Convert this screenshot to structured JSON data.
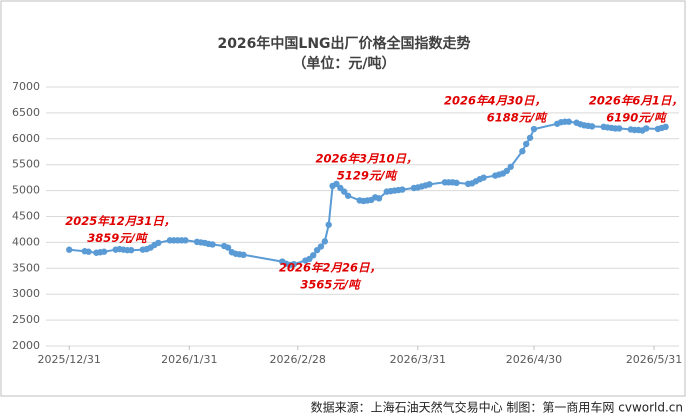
{
  "chart_data": {
    "type": "line",
    "title": "2026年中国LNG出厂价格全国指数走势",
    "subtitle": "（单位：元/吨）",
    "source": "数据来源：上海石油天然气交易中心 制图：第一商用车网 cvworld.cn",
    "x": [
      "2025/12/31",
      "2026/1/4",
      "2026/1/5",
      "2026/1/7",
      "2026/1/8",
      "2026/1/9",
      "2026/1/12",
      "2026/1/13",
      "2026/1/14",
      "2026/1/15",
      "2026/1/16",
      "2026/1/19",
      "2026/1/20",
      "2026/1/21",
      "2026/1/22",
      "2026/1/23",
      "2026/1/26",
      "2026/1/27",
      "2026/1/28",
      "2026/1/29",
      "2026/1/30",
      "2026/2/2",
      "2026/2/3",
      "2026/2/4",
      "2026/2/5",
      "2026/2/6",
      "2026/2/9",
      "2026/2/10",
      "2026/2/11",
      "2026/2/12",
      "2026/2/13",
      "2026/2/14",
      "2026/2/24",
      "2026/2/25",
      "2026/2/26",
      "2026/2/27",
      "2026/3/2",
      "2026/3/3",
      "2026/3/4",
      "2026/3/5",
      "2026/3/6",
      "2026/3/7",
      "2026/3/8",
      "2026/3/9",
      "2026/3/10",
      "2026/3/11",
      "2026/3/12",
      "2026/3/13",
      "2026/3/16",
      "2026/3/17",
      "2026/3/18",
      "2026/3/19",
      "2026/3/20",
      "2026/3/21",
      "2026/3/23",
      "2026/3/24",
      "2026/3/25",
      "2026/3/26",
      "2026/3/27",
      "2026/3/30",
      "2026/3/31",
      "2026/4/1",
      "2026/4/2",
      "2026/4/3",
      "2026/4/7",
      "2026/4/8",
      "2026/4/9",
      "2026/4/10",
      "2026/4/13",
      "2026/4/14",
      "2026/4/15",
      "2026/4/16",
      "2026/4/17",
      "2026/4/20",
      "2026/4/21",
      "2026/4/22",
      "2026/4/23",
      "2026/4/24",
      "2026/4/27",
      "2026/4/28",
      "2026/4/29",
      "2026/4/30",
      "2026/5/6",
      "2026/5/7",
      "2026/5/8",
      "2026/5/9",
      "2026/5/11",
      "2026/5/12",
      "2026/5/13",
      "2026/5/14",
      "2026/5/15",
      "2026/5/18",
      "2026/5/19",
      "2026/5/20",
      "2026/5/21",
      "2026/5/22",
      "2026/5/25",
      "2026/5/26",
      "2026/5/27",
      "2026/5/28",
      "2026/5/29",
      "2026/6/1",
      "2026/6/2",
      "2026/6/3"
    ],
    "series": [
      {
        "name": "LNG出厂价格全国指数",
        "color": "#5b9bd5",
        "values": [
          3859,
          3830,
          3820,
          3800,
          3810,
          3820,
          3860,
          3870,
          3860,
          3850,
          3850,
          3860,
          3870,
          3900,
          3950,
          3990,
          4040,
          4040,
          4040,
          4040,
          4040,
          4010,
          4000,
          3990,
          3970,
          3960,
          3930,
          3900,
          3810,
          3780,
          3770,
          3760,
          3630,
          3590,
          3565,
          3580,
          3650,
          3680,
          3750,
          3850,
          3920,
          4020,
          4340,
          5090,
          5129,
          5050,
          4980,
          4900,
          4810,
          4800,
          4810,
          4820,
          4870,
          4850,
          4980,
          4990,
          5000,
          5010,
          5020,
          5050,
          5060,
          5080,
          5100,
          5120,
          5160,
          5160,
          5160,
          5150,
          5130,
          5140,
          5180,
          5220,
          5250,
          5290,
          5310,
          5330,
          5380,
          5460,
          5760,
          5900,
          6020,
          6188,
          6290,
          6320,
          6330,
          6330,
          6310,
          6280,
          6260,
          6250,
          6240,
          6230,
          6220,
          6210,
          6200,
          6200,
          6180,
          6170,
          6170,
          6160,
          6200,
          6190,
          6210,
          6230
        ]
      }
    ],
    "annotations": [
      {
        "label": "2025年12月31日，",
        "value_label": "3859元/吨",
        "x": "2025/12/31",
        "y": 3859
      },
      {
        "label": "2026年2月26日，",
        "value_label": "3565元/吨",
        "x": "2026/2/26",
        "y": 3565
      },
      {
        "label": "2026年3月10日，",
        "value_label": "5129元/吨",
        "x": "2026/3/10",
        "y": 5129
      },
      {
        "label": "2026年4月30日，",
        "value_label": "6188元/吨",
        "x": "2026/4/30",
        "y": 6188
      },
      {
        "label": "2026年6月1日，",
        "value_label": "6190元/吨",
        "x": "2026/6/1",
        "y": 6190
      }
    ],
    "xlim": [
      "2025/12/25",
      "2026/6/8"
    ],
    "xticks": [
      "2025/12/31",
      "2026/1/31",
      "2026/2/28",
      "2026/3/31",
      "2026/4/30",
      "2026/5/31"
    ],
    "ylim": [
      2000,
      7000
    ],
    "yticks": [
      2000,
      2500,
      3000,
      3500,
      4000,
      4500,
      5000,
      5500,
      6000,
      6500,
      7000
    ],
    "grid": true
  }
}
